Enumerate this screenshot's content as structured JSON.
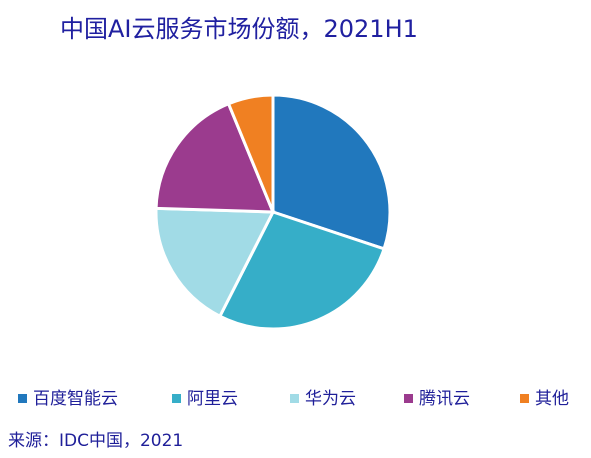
{
  "chart_data": {
    "type": "pie",
    "title": "中国AI云服务市场份额，2021H1",
    "categories": [
      "百度智能云",
      "阿里云",
      "华为云",
      "腾讯云",
      "其他"
    ],
    "values": [
      30.1,
      27.4,
      18.0,
      18.3,
      6.2
    ],
    "colors": [
      "#2178bd",
      "#36aec8",
      "#a1dbe6",
      "#9b3b8e",
      "#f08022"
    ],
    "source": "来源：IDC中国，2021"
  }
}
